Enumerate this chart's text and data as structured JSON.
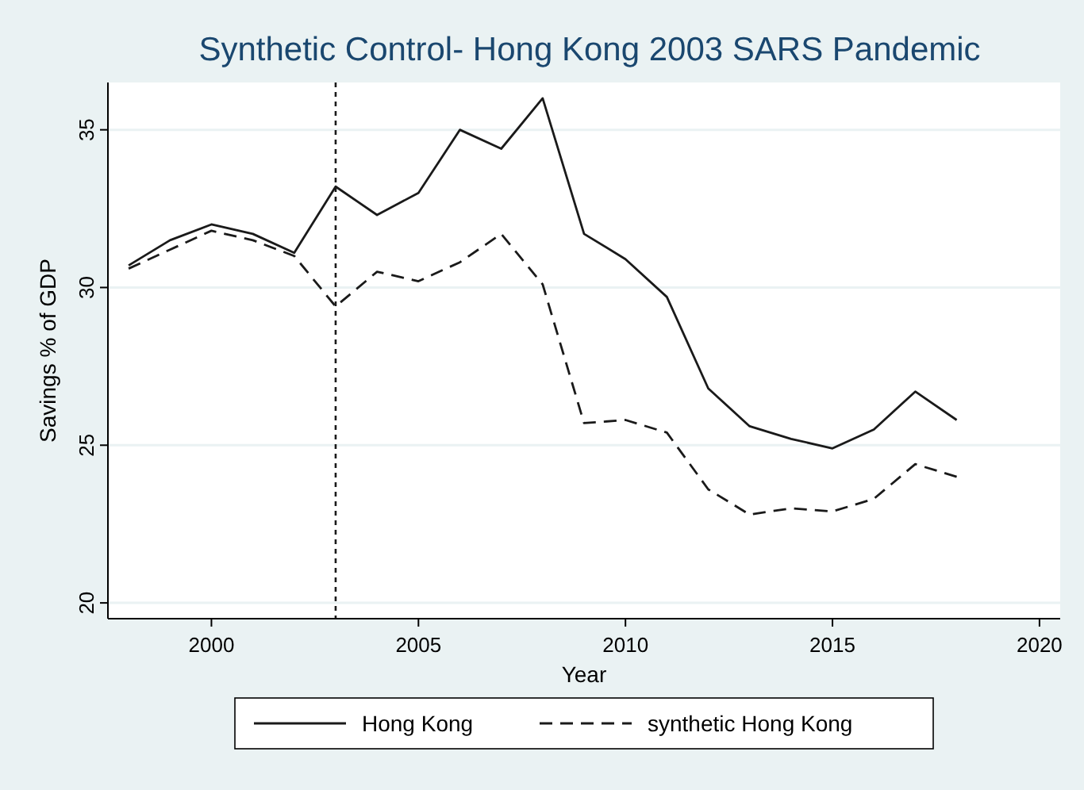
{
  "chart_data": {
    "type": "line",
    "title": "Synthetic Control- Hong Kong 2003 SARS Pandemic",
    "xlabel": "Year",
    "ylabel": "Savings % of GDP",
    "x": [
      1998,
      1999,
      2000,
      2001,
      2002,
      2003,
      2004,
      2005,
      2006,
      2007,
      2008,
      2009,
      2010,
      2011,
      2012,
      2013,
      2014,
      2015,
      2016,
      2017,
      2018
    ],
    "series": [
      {
        "name": "Hong Kong",
        "color": "#1a1a1a",
        "line_style": "solid",
        "values": [
          30.7,
          31.5,
          32.0,
          31.7,
          31.1,
          33.2,
          32.3,
          33.0,
          35.0,
          34.4,
          36.0,
          31.7,
          30.9,
          29.7,
          26.8,
          25.6,
          25.2,
          24.9,
          25.5,
          26.7,
          25.8
        ]
      },
      {
        "name": "synthetic Hong Kong",
        "color": "#1a1a1a",
        "line_style": "dashed",
        "values": [
          30.6,
          31.2,
          31.8,
          31.5,
          31.0,
          29.4,
          30.5,
          30.2,
          30.8,
          31.7,
          30.1,
          25.7,
          25.8,
          25.4,
          23.6,
          22.8,
          23.0,
          22.9,
          23.3,
          24.4,
          24.0
        ]
      }
    ],
    "xlim": [
      1997.5,
      2020.5
    ],
    "xticks": [
      2000,
      2005,
      2010,
      2015,
      2020
    ],
    "ylim": [
      19.5,
      36.5
    ],
    "yticks": [
      20,
      25,
      30,
      35
    ],
    "grid": "y",
    "legend": "bottom",
    "ref_lines": [
      {
        "axis": "x",
        "value": 2003,
        "color": "#1a1a1a",
        "line_style": "dotted"
      }
    ]
  }
}
